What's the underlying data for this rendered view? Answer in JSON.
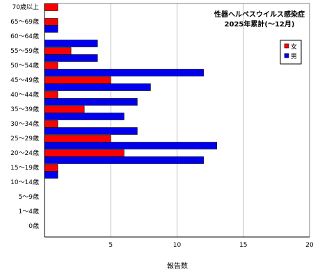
{
  "chart_data": {
    "type": "bar",
    "orientation": "horizontal",
    "title": "性器ヘルペスウイルス感染症",
    "subtitle": "2025年累計(～12月)",
    "xlabel": "報告数",
    "ylabel": "",
    "xlim": [
      0,
      20
    ],
    "xticks": [
      "5",
      "10",
      "15",
      "20"
    ],
    "grid": true,
    "legend_position": "right",
    "categories": [
      "70歳以上",
      "65～69歳",
      "60～64歳",
      "55～59歳",
      "50～54歳",
      "45～49歳",
      "40～44歳",
      "35～39歳",
      "30～34歳",
      "25～29歳",
      "20～24歳",
      "15～19歳",
      "10～14歳",
      "5～9歳",
      "1～4歳",
      "0歳"
    ],
    "series": [
      {
        "name": "女",
        "color": "#ff0000",
        "values": [
          1,
          1,
          0,
          2,
          1,
          5,
          1,
          3,
          1,
          5,
          6,
          1,
          0,
          0,
          0,
          0
        ]
      },
      {
        "name": "男",
        "color": "#0000ee",
        "values": [
          0,
          1,
          4,
          4,
          12,
          8,
          7,
          6,
          7,
          13,
          12,
          1,
          0,
          0,
          0,
          0
        ]
      }
    ]
  }
}
